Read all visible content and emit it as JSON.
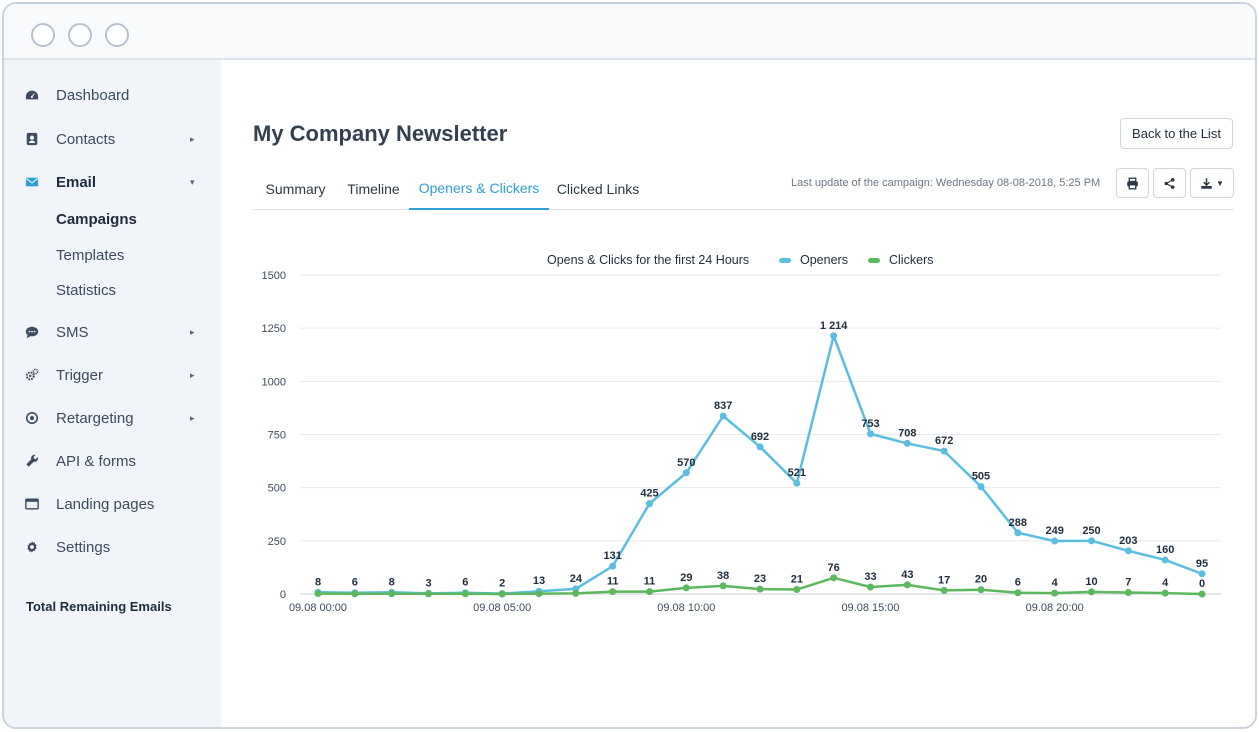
{
  "window": {
    "controls": [
      "window-dot-1",
      "window-dot-2",
      "window-dot-3"
    ]
  },
  "sidebar": {
    "items": [
      {
        "label": "Dashboard",
        "icon": "dashboard-icon",
        "has_arrow": false
      },
      {
        "label": "Contacts",
        "icon": "contacts-icon",
        "has_arrow": true,
        "arrow": "▸"
      },
      {
        "label": "Email",
        "icon": "email-icon",
        "has_arrow": true,
        "arrow": "▾",
        "expanded": true
      },
      {
        "label": "SMS",
        "icon": "sms-icon",
        "has_arrow": true,
        "arrow": "▸"
      },
      {
        "label": "Trigger",
        "icon": "trigger-icon",
        "has_arrow": true,
        "arrow": "▸"
      },
      {
        "label": "Retargeting",
        "icon": "retargeting-icon",
        "has_arrow": true,
        "arrow": "▸"
      },
      {
        "label": "API & forms",
        "icon": "wrench-icon",
        "has_arrow": false
      },
      {
        "label": "Landing pages",
        "icon": "landing-pages-icon",
        "has_arrow": false
      },
      {
        "label": "Settings",
        "icon": "gear-icon",
        "has_arrow": false
      }
    ],
    "email_subitems": [
      {
        "label": "Campaigns",
        "active": true
      },
      {
        "label": "Templates",
        "active": false
      },
      {
        "label": "Statistics",
        "active": false
      }
    ],
    "remaining_label": "Total Remaining Emails"
  },
  "header": {
    "title": "My Company Newsletter",
    "back_label": "Back to the List"
  },
  "tabs": [
    {
      "label": "Summary",
      "active": false
    },
    {
      "label": "Timeline",
      "active": false
    },
    {
      "label": "Openers & Clickers",
      "active": true
    },
    {
      "label": "Clicked Links",
      "active": false
    }
  ],
  "last_update": "Last update of the campaign:  Wednesday 08-08-2018, 5:25 PM",
  "toolbar": {
    "print_icon": "print-icon",
    "share_icon": "share-icon",
    "download_icon": "download-icon",
    "dropdown_icon": "chevron-down-icon"
  },
  "colors": {
    "accent": "#2f9ed6",
    "openers": "#5bbde0",
    "clickers": "#5cb85c"
  },
  "chart_data": {
    "type": "line",
    "title": "Opens & Clicks for the first 24 Hours",
    "x_tick_labels": [
      "09.08 00:00",
      "09.08 05:00",
      "09.08 10:00",
      "09.08 15:00",
      "09.08 20:00"
    ],
    "x": [
      0,
      1,
      2,
      3,
      4,
      5,
      6,
      7,
      8,
      9,
      10,
      11,
      12,
      13,
      14,
      15,
      16,
      17,
      18,
      19,
      20,
      21,
      22,
      23,
      24
    ],
    "ylim": [
      0,
      1500
    ],
    "yticks": [
      0,
      250,
      500,
      750,
      1000,
      1250,
      1500
    ],
    "grid": true,
    "legend": "top-center",
    "series": [
      {
        "name": "Openers",
        "values": [
          8,
          6,
          8,
          3,
          6,
          2,
          13,
          24,
          131,
          425,
          570,
          837,
          692,
          521,
          1214,
          753,
          708,
          672,
          505,
          288,
          249,
          250,
          203,
          160,
          95
        ],
        "labels": [
          "8",
          "6",
          "8",
          "3",
          "6",
          "2",
          "13",
          "24",
          "131",
          "425",
          "570",
          "837",
          "692",
          "521",
          "1 214",
          "753",
          "708",
          "672",
          "505",
          "288",
          "249",
          "250",
          "203",
          "160",
          "95"
        ]
      },
      {
        "name": "Clickers",
        "values": [
          2,
          1,
          1,
          1,
          1,
          0,
          2,
          3,
          11,
          11,
          29,
          38,
          23,
          21,
          76,
          33,
          43,
          17,
          20,
          6,
          4,
          10,
          7,
          4,
          0
        ],
        "labels": [
          "",
          "",
          "",
          "",
          "",
          "",
          "",
          "",
          "11",
          "11",
          "29",
          "38",
          "23",
          "21",
          "76",
          "33",
          "43",
          "17",
          "20",
          "6",
          "4",
          "10",
          "7",
          "4",
          "0"
        ]
      }
    ]
  }
}
